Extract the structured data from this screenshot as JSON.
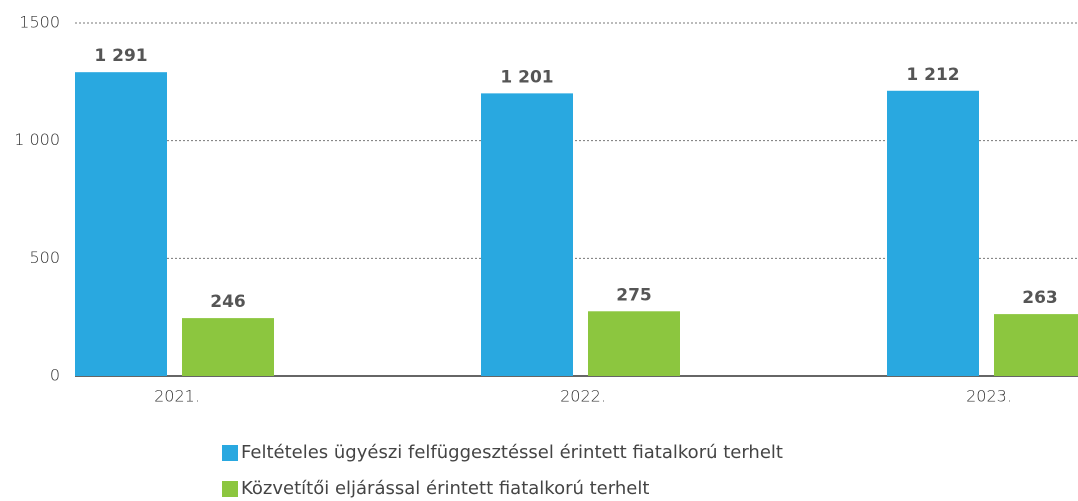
{
  "chart_data": {
    "type": "bar",
    "categories": [
      "2021.",
      "2022.",
      "2023."
    ],
    "series": [
      {
        "name": "Feltételes ügyészi felfüggesztéssel érintett fiatalkorú terhelt",
        "color": "#29a8e0",
        "values": [
          1291,
          1201,
          1212
        ],
        "value_labels": [
          "1 291",
          "1 201",
          "1 212"
        ]
      },
      {
        "name": "Közvetítői eljárással érintett fiatalkorú terhelt",
        "color": "#8cc63f",
        "values": [
          246,
          275,
          263
        ]
      }
    ],
    "ylim": [
      0,
      1500
    ],
    "yticks": [
      0,
      500,
      {
        "value": 1000,
        "label": "1 000"
      },
      1500
    ],
    "grid": true
  }
}
